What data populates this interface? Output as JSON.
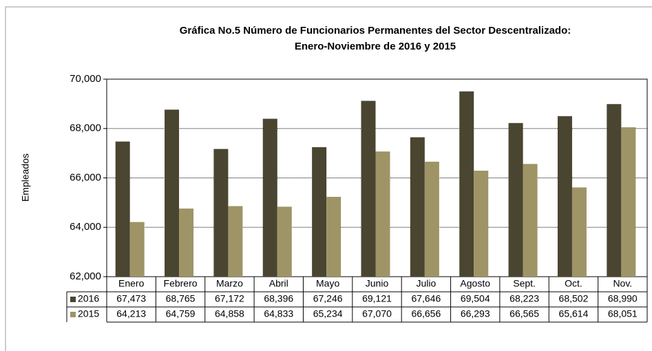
{
  "chart_data": {
    "type": "bar",
    "title": [
      "Gráfica No.5 Número de Funcionarios Permanentes del Sector Descentralizado:",
      "Enero-Noviembre de 2016 y 2015"
    ],
    "y_label": "Empleados",
    "categories": [
      "Enero",
      "Febrero",
      "Marzo",
      "Abril",
      "Mayo",
      "Junio",
      "Julio",
      "Agosto",
      "Sept.",
      "Oct.",
      "Nov."
    ],
    "series": [
      {
        "name": "2016",
        "color": "#4a4530",
        "values": [
          67473,
          68765,
          67172,
          68396,
          67246,
          69121,
          67646,
          69504,
          68223,
          68502,
          68990
        ],
        "value_labels": [
          "67,473",
          "68,765",
          "67,172",
          "68,396",
          "67,246",
          "69,121",
          "67,646",
          "69,504",
          "68,223",
          "68,502",
          "68,990"
        ]
      },
      {
        "name": "2015",
        "color": "#9e9466",
        "values": [
          64213,
          64759,
          64858,
          64833,
          65234,
          67070,
          66656,
          66293,
          66565,
          65614,
          68051
        ],
        "value_labels": [
          "64,213",
          "64,759",
          "64,858",
          "64,833",
          "65,234",
          "67,070",
          "66,656",
          "66,293",
          "66,565",
          "65,614",
          "68,051"
        ]
      }
    ],
    "ylim": [
      62000,
      70000
    ],
    "yticks": [
      {
        "value": 62000,
        "label": "62,000"
      },
      {
        "value": 64000,
        "label": "64,000"
      },
      {
        "value": 66000,
        "label": "66,000"
      },
      {
        "value": 68000,
        "label": "68,000"
      },
      {
        "value": 70000,
        "label": "70,000"
      }
    ],
    "grid": true
  }
}
